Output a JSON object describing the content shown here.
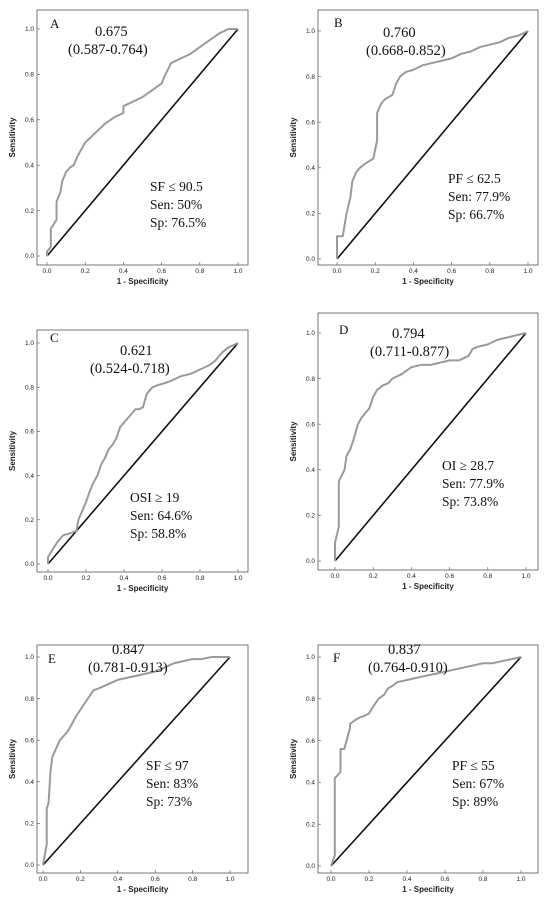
{
  "chart_data": [
    {
      "type": "line",
      "panel": "A",
      "auc": "0.675",
      "ci": "(0.587-0.764)",
      "cutoff": "SF ≤ 90.5",
      "sen": "Sen: 50%",
      "sp": "Sp: 76.5%",
      "xlabel": "1 - Specificity",
      "ylabel": "Sensitivity",
      "xticks": [
        "0.0",
        "0.2",
        "0.4",
        "0.6",
        "0.8",
        "1.0"
      ],
      "yticks": [
        "0.0",
        "0.2",
        "0.4",
        "0.6",
        "0.8",
        "1.0"
      ],
      "xlim": [
        0,
        1
      ],
      "ylim": [
        0,
        1
      ],
      "series": [
        {
          "x": [
            0,
            0,
            0.02,
            0.02,
            0.05,
            0.05,
            0.07,
            0.08,
            0.1,
            0.12,
            0.14,
            0.16,
            0.2,
            0.25,
            0.3,
            0.35,
            0.4,
            0.4,
            0.45,
            0.5,
            0.55,
            0.6,
            0.62,
            0.65,
            0.7,
            0.75,
            0.8,
            0.85,
            0.9,
            0.95,
            1.0
          ],
          "y": [
            0,
            0.02,
            0.04,
            0.12,
            0.16,
            0.24,
            0.28,
            0.33,
            0.37,
            0.39,
            0.4,
            0.44,
            0.5,
            0.54,
            0.58,
            0.61,
            0.63,
            0.66,
            0.68,
            0.7,
            0.73,
            0.76,
            0.8,
            0.85,
            0.87,
            0.89,
            0.92,
            0.95,
            0.98,
            1.0,
            1.0
          ]
        },
        {
          "x": [
            0,
            1
          ],
          "y": [
            0,
            1
          ]
        }
      ]
    },
    {
      "type": "line",
      "panel": "B",
      "auc": "0.760",
      "ci": "(0.668-0.852)",
      "cutoff": "PF ≤ 62.5",
      "sen": "Sen: 77.9%",
      "sp": "Sp: 66.7%",
      "xlabel": "1 - Specificity",
      "ylabel": "Sensitivity",
      "xticks": [
        "0.0",
        "0.2",
        "0.4",
        "0.6",
        "0.8",
        "1.0"
      ],
      "yticks": [
        "0.0",
        "0.2",
        "0.4",
        "0.6",
        "0.8",
        "1.0"
      ],
      "xlim": [
        0,
        1
      ],
      "ylim": [
        0,
        1
      ],
      "series": [
        {
          "x": [
            0,
            0,
            0.03,
            0.05,
            0.07,
            0.08,
            0.1,
            0.12,
            0.15,
            0.17,
            0.19,
            0.21,
            0.21,
            0.23,
            0.25,
            0.27,
            0.29,
            0.31,
            0.33,
            0.36,
            0.4,
            0.45,
            0.5,
            0.55,
            0.6,
            0.65,
            0.7,
            0.75,
            0.8,
            0.85,
            0.9,
            0.95,
            1.0
          ],
          "y": [
            0,
            0.1,
            0.1,
            0.2,
            0.27,
            0.34,
            0.38,
            0.4,
            0.42,
            0.43,
            0.44,
            0.52,
            0.64,
            0.68,
            0.7,
            0.71,
            0.72,
            0.77,
            0.8,
            0.82,
            0.83,
            0.85,
            0.86,
            0.87,
            0.88,
            0.9,
            0.91,
            0.93,
            0.94,
            0.95,
            0.97,
            0.98,
            1.0
          ]
        },
        {
          "x": [
            0,
            1
          ],
          "y": [
            0,
            1
          ]
        }
      ]
    },
    {
      "type": "line",
      "panel": "C",
      "auc": "0.621",
      "ci": "(0.524-0.718)",
      "cutoff": "OSI ≥ 19",
      "sen": "Sen: 64.6%",
      "sp": "Sp: 58.8%",
      "xlabel": "1 - Specificity",
      "ylabel": "Sensitivity",
      "xticks": [
        "0.0",
        "0.2",
        "0.4",
        "0.6",
        "0.8",
        "1.0"
      ],
      "yticks": [
        "0.0",
        "0.2",
        "0.4",
        "0.6",
        "0.8",
        "1.0"
      ],
      "xlim": [
        0,
        1
      ],
      "ylim": [
        0,
        1
      ],
      "series": [
        {
          "x": [
            0,
            0,
            0.02,
            0.05,
            0.08,
            0.12,
            0.15,
            0.16,
            0.18,
            0.2,
            0.22,
            0.24,
            0.26,
            0.28,
            0.3,
            0.32,
            0.34,
            0.36,
            0.38,
            0.4,
            0.42,
            0.44,
            0.46,
            0.48,
            0.5,
            0.52,
            0.55,
            0.58,
            0.62,
            0.65,
            0.7,
            0.75,
            0.8,
            0.85,
            0.88,
            0.9,
            0.92,
            0.95,
            1.0
          ],
          "y": [
            0,
            0.03,
            0.06,
            0.1,
            0.13,
            0.14,
            0.15,
            0.2,
            0.24,
            0.28,
            0.33,
            0.37,
            0.4,
            0.45,
            0.48,
            0.52,
            0.54,
            0.57,
            0.62,
            0.64,
            0.66,
            0.68,
            0.7,
            0.7,
            0.71,
            0.77,
            0.8,
            0.81,
            0.82,
            0.83,
            0.85,
            0.86,
            0.88,
            0.9,
            0.92,
            0.94,
            0.96,
            0.98,
            1.0
          ]
        },
        {
          "x": [
            0,
            1
          ],
          "y": [
            0,
            1
          ]
        }
      ]
    },
    {
      "type": "line",
      "panel": "D",
      "auc": "0.794",
      "ci": "(0.711-0.877)",
      "cutoff": "OI ≥ 28.7",
      "sen": "Sen: 77.9%",
      "sp": "Sp: 73.8%",
      "xlabel": "1 - Specificity",
      "ylabel": "Sensitivity",
      "xticks": [
        "0.0",
        "0.2",
        "0.4",
        "0.6",
        "0.8",
        "1.0"
      ],
      "yticks": [
        "0.0",
        "0.2",
        "0.4",
        "0.6",
        "0.8",
        "1.0"
      ],
      "xlim": [
        0,
        1
      ],
      "ylim": [
        0,
        1
      ],
      "series": [
        {
          "x": [
            0,
            0,
            0.02,
            0.02,
            0.05,
            0.06,
            0.08,
            0.1,
            0.12,
            0.14,
            0.16,
            0.18,
            0.2,
            0.22,
            0.25,
            0.28,
            0.3,
            0.35,
            0.4,
            0.45,
            0.5,
            0.55,
            0.6,
            0.65,
            0.7,
            0.72,
            0.75,
            0.8,
            0.85,
            0.9,
            0.95,
            1.0
          ],
          "y": [
            0,
            0.08,
            0.15,
            0.35,
            0.4,
            0.46,
            0.49,
            0.54,
            0.6,
            0.63,
            0.65,
            0.67,
            0.72,
            0.75,
            0.77,
            0.78,
            0.8,
            0.82,
            0.85,
            0.86,
            0.86,
            0.87,
            0.88,
            0.88,
            0.9,
            0.93,
            0.94,
            0.95,
            0.97,
            0.98,
            0.99,
            1.0
          ]
        },
        {
          "x": [
            0,
            1
          ],
          "y": [
            0,
            1
          ]
        }
      ]
    },
    {
      "type": "line",
      "panel": "E",
      "auc": "0.847",
      "ci": "(0.781-0.913)",
      "cutoff": "SF ≤ 97",
      "sen": "Sen: 83%",
      "sp": "Sp: 73%",
      "xlabel": "1 - Specificity",
      "ylabel": "Sensitivity",
      "xticks": [
        "0.0",
        "0.2",
        "0.4",
        "0.6",
        "0.8",
        "1.0"
      ],
      "yticks": [
        "0.0",
        "0.2",
        "0.4",
        "0.6",
        "0.8",
        "1.0"
      ],
      "xlim": [
        0,
        1
      ],
      "ylim": [
        0,
        1
      ],
      "series": [
        {
          "x": [
            0,
            0.01,
            0.02,
            0.02,
            0.03,
            0.04,
            0.05,
            0.07,
            0.09,
            0.11,
            0.13,
            0.15,
            0.18,
            0.21,
            0.24,
            0.27,
            0.3,
            0.35,
            0.4,
            0.5,
            0.6,
            0.65,
            0.7,
            0.75,
            0.8,
            0.85,
            0.9,
            0.95,
            1.0
          ],
          "y": [
            0,
            0.05,
            0.1,
            0.27,
            0.3,
            0.45,
            0.52,
            0.56,
            0.6,
            0.62,
            0.64,
            0.67,
            0.72,
            0.76,
            0.8,
            0.84,
            0.85,
            0.87,
            0.89,
            0.91,
            0.93,
            0.95,
            0.97,
            0.98,
            0.99,
            0.99,
            1.0,
            1.0,
            1.0
          ]
        },
        {
          "x": [
            0,
            1
          ],
          "y": [
            0,
            1
          ]
        }
      ]
    },
    {
      "type": "line",
      "panel": "F",
      "auc": "0.837",
      "ci": "(0.764-0.910)",
      "cutoff": "PF ≤ 55",
      "sen": "Sen: 67%",
      "sp": "Sp: 89%",
      "xlabel": "1 - Specificity",
      "ylabel": "Sensitivity",
      "xticks": [
        "0.0",
        "0.2",
        "0.4",
        "0.6",
        "0.8",
        "1.0"
      ],
      "yticks": [
        "0.0",
        "0.2",
        "0.4",
        "0.6",
        "0.8",
        "1.0"
      ],
      "xlim": [
        0,
        1
      ],
      "ylim": [
        0,
        1
      ],
      "series": [
        {
          "x": [
            0,
            0.02,
            0.02,
            0.05,
            0.05,
            0.07,
            0.1,
            0.1,
            0.13,
            0.15,
            0.18,
            0.2,
            0.22,
            0.25,
            0.28,
            0.3,
            0.32,
            0.35,
            0.4,
            0.45,
            0.5,
            0.55,
            0.6,
            0.65,
            0.7,
            0.75,
            0.8,
            0.85,
            0.9,
            0.95,
            1.0
          ],
          "y": [
            0,
            0.05,
            0.42,
            0.45,
            0.56,
            0.56,
            0.66,
            0.68,
            0.7,
            0.71,
            0.72,
            0.73,
            0.76,
            0.8,
            0.82,
            0.85,
            0.86,
            0.88,
            0.89,
            0.9,
            0.91,
            0.92,
            0.93,
            0.94,
            0.95,
            0.96,
            0.97,
            0.97,
            0.98,
            0.99,
            1.0
          ]
        },
        {
          "x": [
            0,
            1
          ],
          "y": [
            0,
            1
          ]
        }
      ]
    }
  ],
  "colors": {
    "roc_curve": "#9a9a9a",
    "reference_line": "#111111",
    "axis": "#555555"
  }
}
